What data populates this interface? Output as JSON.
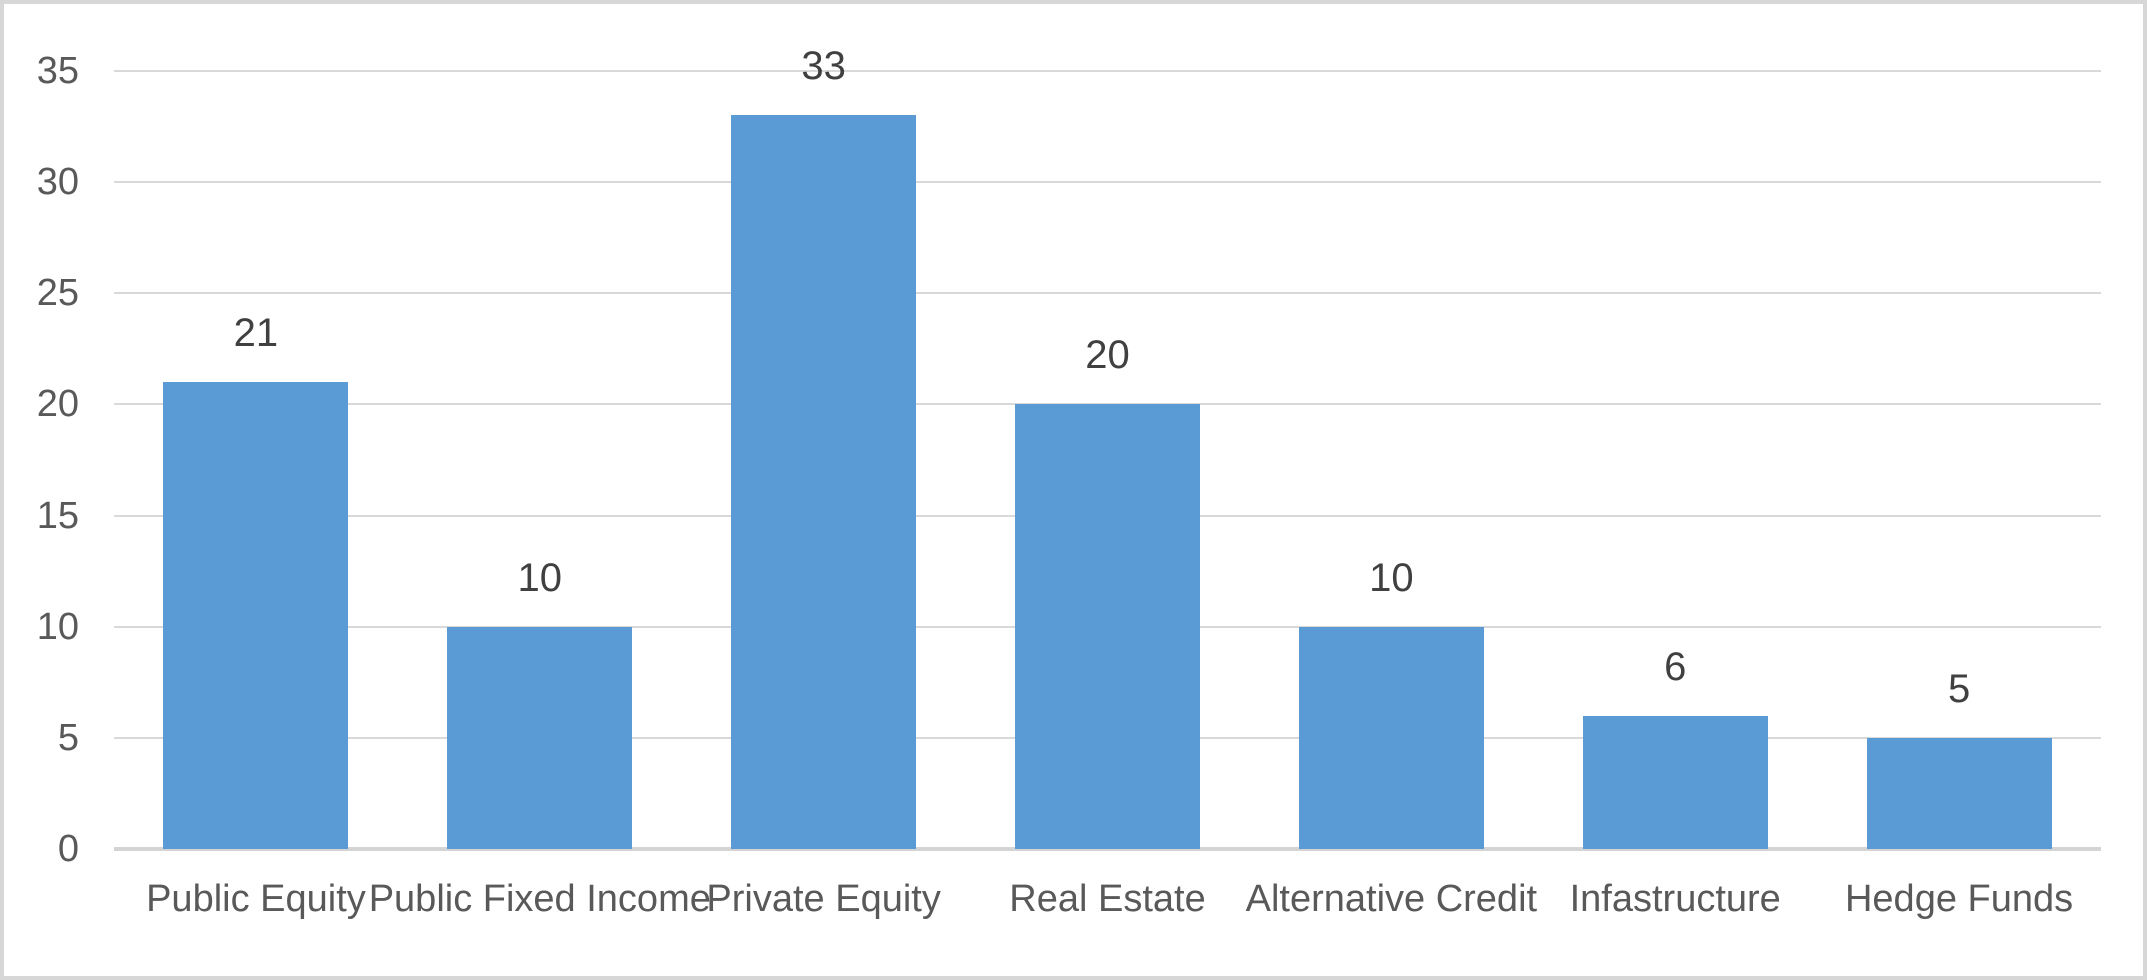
{
  "chart_data": {
    "type": "bar",
    "categories": [
      "Public Equity",
      "Public Fixed Income",
      "Private Equity",
      "Real Estate",
      "Alternative Credit",
      "Infastructure",
      "Hedge Funds"
    ],
    "values": [
      21,
      10,
      33,
      20,
      10,
      6,
      5
    ],
    "data_labels": [
      "21",
      "10",
      "33",
      "20",
      "10",
      "6",
      "5"
    ],
    "title": "",
    "xlabel": "",
    "ylabel": "",
    "ylim": [
      0,
      35
    ],
    "y_ticks": [
      0,
      5,
      10,
      15,
      20,
      25,
      30,
      35
    ],
    "y_tick_labels": [
      "0",
      "5",
      "10",
      "15",
      "20",
      "25",
      "30",
      "35"
    ],
    "grid": "horizontal",
    "legend": "none",
    "colors": {
      "bar_fill": "#5b9bd5",
      "gridline": "#d9d9d9",
      "axis_line": "#d4d4d4",
      "axis_label_text": "#595959",
      "data_label_text": "#404040",
      "frame_border": "#d7d7d7",
      "background": "#ffffff"
    }
  }
}
